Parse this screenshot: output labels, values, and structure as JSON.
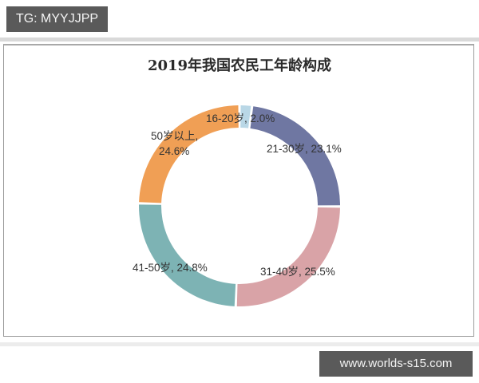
{
  "watermark_top": "TG: MYYJJPP",
  "watermark_bottom": "www.worlds-s15.com",
  "chart": {
    "title": "2019年我国农民工年龄构成",
    "labels": [
      {
        "line1": "16-20岁, 2.0%",
        "line2": ""
      },
      {
        "line1": "21-30岁, 23.1%",
        "line2": ""
      },
      {
        "line1": "31-40岁, 25.5%",
        "line2": ""
      },
      {
        "line1": "41-50岁, 24.8%",
        "line2": ""
      },
      {
        "line1": "50岁以上,",
        "line2": "24.6%"
      }
    ]
  },
  "chart_data": {
    "type": "pie",
    "subtype": "donut",
    "title": "2019年我国农民工年龄构成",
    "categories": [
      "16-20岁",
      "21-30岁",
      "31-40岁",
      "41-50岁",
      "50岁以上"
    ],
    "values": [
      2.0,
      23.1,
      25.5,
      24.8,
      24.6
    ],
    "unit": "%",
    "colors": [
      "#b9d7e6",
      "#6f77a2",
      "#d9a3a7",
      "#7db3b4",
      "#f09f55"
    ],
    "start_angle": "12 o'clock",
    "direction": "clockwise",
    "legend": "none (inline data labels)"
  }
}
